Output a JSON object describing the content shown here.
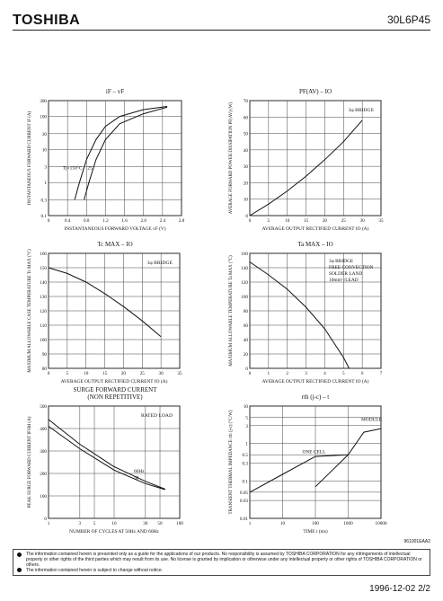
{
  "header": {
    "brand": "TOSHIBA",
    "part_number": "30L6P45"
  },
  "footer": {
    "doc_id": "961001EAA2",
    "date_page": "1996-12-02 2/2"
  },
  "notice": [
    "The information contained herein is presented only as a guide for the applications of our products. No responsibility is assumed by TOSHIBA CORPORATION for any infringements of intellectual property or other rights of the third parties which may result from its use. No license is granted by implication or otherwise under any intellectual property or other rights of TOSHIBA CORPORATION or others.",
    "The information contained herein is subject to change without notice."
  ],
  "chart_data": [
    {
      "id": "c1",
      "type": "line",
      "title": "iF – vF",
      "xlabel": "INSTANTANEOUS FORWARD VOLTAGE vF (V)",
      "ylabel": "INSTANTANEOUS FORWARD CURRENT iF (A)",
      "xscale": "linear",
      "yscale": "log",
      "xlim": [
        0,
        2.8
      ],
      "ylim": [
        0.1,
        300
      ],
      "xticks": [
        0,
        0.4,
        0.8,
        1.2,
        1.6,
        2.0,
        2.4,
        2.8
      ],
      "xtick_labels": [
        "0",
        "0.4",
        "0.8",
        "1.2",
        "1.6",
        "2.0",
        "2.4",
        "2.8"
      ],
      "yticks": [
        0.1,
        0.3,
        1,
        3,
        10,
        30,
        100,
        300
      ],
      "ytick_labels": [
        "0.1",
        "0.3",
        "1",
        "3",
        "10",
        "30",
        "100",
        "300"
      ],
      "annotations": [
        {
          "text": "Tj=150°C",
          "x": 0.3,
          "y": 2.5
        },
        {
          "text": "25",
          "x": 0.82,
          "y": 2.5
        }
      ],
      "series": [
        {
          "x": [
            0.55,
            0.65,
            0.8,
            1.0,
            1.2,
            1.5,
            2.0,
            2.5
          ],
          "y": [
            0.3,
            1,
            5,
            20,
            50,
            100,
            160,
            200
          ]
        },
        {
          "x": [
            0.75,
            0.85,
            1.0,
            1.2,
            1.5,
            2.0,
            2.5
          ],
          "y": [
            0.3,
            1,
            5,
            20,
            60,
            120,
            190
          ]
        }
      ]
    },
    {
      "id": "c2",
      "type": "line",
      "title": "PF(AV) – IO",
      "xlabel": "AVERAGE OUTPUT RECTIFIED CURRENT IO (A)",
      "ylabel": "AVERAGE FORWARD POWER DISSIPATION PF(AV) (W)",
      "xlim": [
        0,
        35
      ],
      "ylim": [
        0,
        70
      ],
      "xticks": [
        0,
        5,
        10,
        15,
        20,
        25,
        30,
        35
      ],
      "xtick_labels": [
        "0",
        "5",
        "10",
        "15",
        "20",
        "25",
        "30",
        "35"
      ],
      "yticks": [
        0,
        10,
        20,
        30,
        40,
        50,
        60,
        70
      ],
      "ytick_labels": [
        "0",
        "10",
        "20",
        "30",
        "40",
        "50",
        "60",
        "70"
      ],
      "legend_text": "3φ BRIDGE",
      "series": [
        {
          "x": [
            0,
            5,
            10,
            15,
            20,
            25,
            30
          ],
          "y": [
            0,
            7,
            15,
            24,
            34,
            45,
            58
          ]
        }
      ]
    },
    {
      "id": "c3",
      "type": "line",
      "title": "Tc MAX – IO",
      "xlabel": "AVERAGE OUTPUT RECTIFIED CURRENT IO (A)",
      "ylabel": "MAXIMUM ALLOWABLE CASE TEMPERATURE Tc MAX (°C)",
      "xlim": [
        0,
        35
      ],
      "ylim": [
        80,
        160
      ],
      "xticks": [
        0,
        5,
        10,
        15,
        20,
        25,
        30,
        35
      ],
      "xtick_labels": [
        "0",
        "5",
        "10",
        "15",
        "20",
        "25",
        "30",
        "35"
      ],
      "yticks": [
        80,
        90,
        100,
        110,
        120,
        130,
        140,
        150,
        160
      ],
      "ytick_labels": [
        "80",
        "90",
        "100",
        "110",
        "120",
        "130",
        "140",
        "150",
        "160"
      ],
      "legend_text": "3φ BRIDGE",
      "series": [
        {
          "x": [
            0,
            5,
            10,
            15,
            20,
            25,
            30
          ],
          "y": [
            150,
            146,
            140,
            132,
            123,
            113,
            102
          ]
        }
      ]
    },
    {
      "id": "c4",
      "type": "line",
      "title": "Ta MAX – IO",
      "xlabel": "AVERAGE OUTPUT RECTIFIED CURRENT IO (A)",
      "ylabel": "MAXIMUM ALLOWABLE TEMPERATURE Ta MAX (°C)",
      "xlim": [
        0,
        7
      ],
      "ylim": [
        0,
        160
      ],
      "xticks": [
        0,
        1,
        2,
        3,
        4,
        5,
        6,
        7
      ],
      "xtick_labels": [
        "0",
        "1",
        "2",
        "3",
        "4",
        "5",
        "6",
        "7"
      ],
      "yticks": [
        0,
        20,
        40,
        60,
        80,
        100,
        120,
        140,
        160
      ],
      "ytick_labels": [
        "0",
        "20",
        "40",
        "60",
        "80",
        "100",
        "120",
        "140",
        "160"
      ],
      "legend_lines": [
        "3φ BRIDGE",
        "FREE CONVECTION",
        "SOLDER LAND",
        "10mm² /LEAD"
      ],
      "series": [
        {
          "x": [
            0,
            1,
            2,
            3,
            4,
            5,
            5.3
          ],
          "y": [
            148,
            130,
            110,
            85,
            55,
            15,
            0
          ]
        }
      ]
    },
    {
      "id": "c5",
      "type": "line",
      "title": "SURGE FORWARD CURRENT",
      "subtitle": "(NON REPETITIVE)",
      "xlabel": "NUMBER OF CYCLES AT 50Hz AND 60Hz",
      "ylabel": "PEAK SURGE FORWARD CURRENT IFSM (A)",
      "xscale": "log",
      "xlim": [
        1,
        100
      ],
      "ylim": [
        0,
        500
      ],
      "xticks": [
        1,
        3,
        5,
        10,
        30,
        50,
        100
      ],
      "xtick_labels": [
        "1",
        "3",
        "5",
        "10",
        "30",
        "50",
        "100"
      ],
      "yticks": [
        0,
        100,
        200,
        300,
        400,
        500
      ],
      "ytick_labels": [
        "0",
        "100",
        "200",
        "300",
        "400",
        "500"
      ],
      "legend_text": "RATED LOAD",
      "annotations": [
        {
          "text": "60Hz",
          "x": 20,
          "y": 205
        },
        {
          "text": "50",
          "x": 20,
          "y": 175
        }
      ],
      "series": [
        {
          "name": "60Hz",
          "x": [
            1,
            3,
            10,
            30,
            60
          ],
          "y": [
            440,
            330,
            230,
            165,
            130
          ]
        },
        {
          "name": "50",
          "x": [
            1,
            3,
            10,
            30,
            60
          ],
          "y": [
            410,
            310,
            215,
            155,
            128
          ]
        }
      ]
    },
    {
      "id": "c6",
      "type": "line",
      "title": "rth (j-c) – t",
      "xlabel": "TIME t (ms)",
      "ylabel": "TRANSIENT THERMAL IMPEDANCE rth (j-c) (°C/W)",
      "xscale": "log",
      "yscale": "log",
      "xlim": [
        1,
        10000
      ],
      "ylim": [
        0.01,
        10
      ],
      "xticks": [
        1,
        10,
        100,
        1000,
        10000
      ],
      "xtick_labels": [
        "1",
        "10",
        "100",
        "1000",
        "10000"
      ],
      "yticks": [
        0.01,
        0.03,
        0.05,
        0.1,
        0.3,
        0.5,
        1,
        3,
        5,
        10
      ],
      "ytick_labels": [
        "0.01",
        "0.03",
        "0.05",
        "0.1",
        "0.3",
        "0.5",
        "1",
        "3",
        "5",
        "10"
      ],
      "annotations": [
        {
          "text": "ONE CELL",
          "x": 40,
          "y": 0.55
        },
        {
          "text": "MODULE",
          "x": 2500,
          "y": 4
        }
      ],
      "series": [
        {
          "name": "ONE CELL",
          "x": [
            1,
            10,
            100,
            1000
          ],
          "y": [
            0.05,
            0.15,
            0.45,
            0.5
          ]
        },
        {
          "name": "MODULE",
          "x": [
            100,
            1000,
            3000,
            10000
          ],
          "y": [
            0.07,
            0.5,
            2,
            2.5
          ]
        }
      ]
    }
  ]
}
